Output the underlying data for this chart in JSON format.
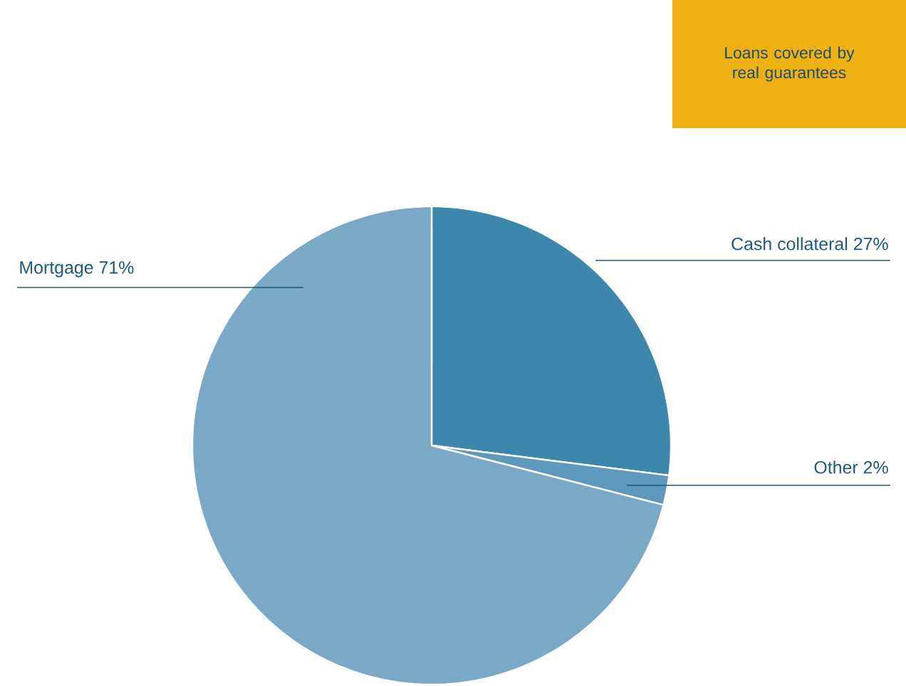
{
  "chart_data": {
    "type": "pie",
    "title": "Loans covered by real guarantees",
    "categories": [
      "Cash collateral",
      "Other",
      "Mortgage"
    ],
    "values": [
      27,
      2,
      71
    ],
    "value_labels": [
      "27%",
      "2%",
      "71%"
    ],
    "colors": [
      "#3d87ad",
      "#5e98bd",
      "#7aa9c7"
    ]
  }
}
